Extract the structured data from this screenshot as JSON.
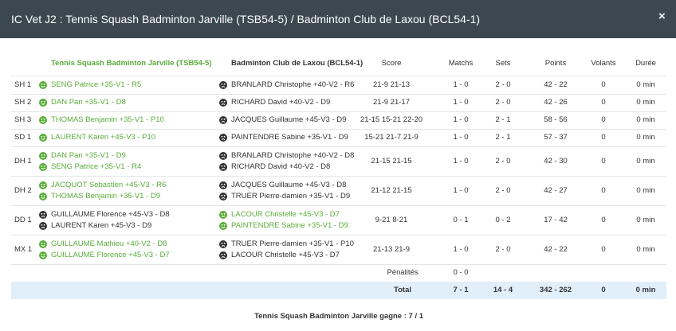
{
  "header": {
    "title": "IC Vet J2 : Tennis Squash Badminton Jarville (TSB54-5) / Badminton Club de Laxou (BCL54-1)",
    "close": "×"
  },
  "table": {
    "columns": [
      "Tennis Squash Badminton Jarville (TSB54-5)",
      "Badminton Club de Laxou (BCL54-1)",
      "Score",
      "Matchs",
      "Sets",
      "Points",
      "Volants",
      "Durée"
    ],
    "rows": [
      {
        "match": "SH 1",
        "winner": "home",
        "home": [
          "SENG Patrice +35-V1 - R5"
        ],
        "away": [
          "BRANLARD Christophe +40-V2 - R6"
        ],
        "score": "21-9 21-13",
        "matchs": "1 - 0",
        "sets": "2 - 0",
        "points": "42 - 22",
        "volants": "0",
        "duree": "0 min"
      },
      {
        "match": "SH 2",
        "winner": "home",
        "home": [
          "DAN Pan +35-V1 - D8"
        ],
        "away": [
          "RICHARD David +40-V2 - D9"
        ],
        "score": "21-9 21-17",
        "matchs": "1 - 0",
        "sets": "2 - 0",
        "points": "42 - 26",
        "volants": "0",
        "duree": "0 min"
      },
      {
        "match": "SH 3",
        "winner": "home",
        "home": [
          "THOMAS Benjamin +35-V1 - P10"
        ],
        "away": [
          "JACQUES Guillaume +45-V3 - D9"
        ],
        "score": "21-15 15-21 22-20",
        "matchs": "1 - 0",
        "sets": "2 - 1",
        "points": "58 - 56",
        "volants": "0",
        "duree": "0 min"
      },
      {
        "match": "SD 1",
        "winner": "home",
        "home": [
          "LAURENT Karen +45-V3 - P10"
        ],
        "away": [
          "PAINTENDRE Sabine +35-V1 - D9"
        ],
        "score": "15-21 21-7 21-9",
        "matchs": "1 - 0",
        "sets": "2 - 1",
        "points": "57 - 37",
        "volants": "0",
        "duree": "0 min"
      },
      {
        "match": "DH 1",
        "winner": "home",
        "home": [
          "DAN Pan +35-V1 - D9",
          "SENG Patrice +35-V1 - R4"
        ],
        "away": [
          "BRANLARD Christophe +40-V2 - D8",
          "RICHARD David +40-V2 - D8"
        ],
        "score": "21-15 21-15",
        "matchs": "1 - 0",
        "sets": "2 - 0",
        "points": "42 - 30",
        "volants": "0",
        "duree": "0 min"
      },
      {
        "match": "DH 2",
        "winner": "home",
        "home": [
          "JACQUOT Sebastien +45-V3 - R6",
          "THOMAS Benjamin +35-V1 - D9"
        ],
        "away": [
          "JACQUES Guillaume +45-V3 - D8",
          "TRUER Pierre-damien +35-V1 - D9"
        ],
        "score": "21-12 21-15",
        "matchs": "1 - 0",
        "sets": "2 - 0",
        "points": "42 - 27",
        "volants": "0",
        "duree": "0 min"
      },
      {
        "match": "DD 1",
        "winner": "away",
        "home": [
          "GUILLAUME Florence +45-V3 - D8",
          "LAURENT Karen +45-V3 - D9"
        ],
        "away": [
          "LACOUR Christelle +45-V3 - D7",
          "PAINTENDRE Sabine +35-V1 - D9"
        ],
        "score": "9-21 8-21",
        "matchs": "0 - 1",
        "sets": "0 - 2",
        "points": "17 - 42",
        "volants": "0",
        "duree": "0 min"
      },
      {
        "match": "MX 1",
        "winner": "home",
        "home": [
          "GUILLAUME Mathieu +40-V2 - D8",
          "GUILLAUME Florence +45-V3 - D7"
        ],
        "away": [
          "TRUER Pierre-damien +35-V1 - P10",
          "LACOUR Christelle +45-V3 - D7"
        ],
        "score": "21-13 21-9",
        "matchs": "1 - 0",
        "sets": "2 - 0",
        "points": "42 - 22",
        "volants": "0",
        "duree": "0 min"
      }
    ],
    "penalties": {
      "label": "Pénalités",
      "value": "0 - 0"
    },
    "total": {
      "label": "Total",
      "matchs": "7 - 1",
      "sets": "14 - 4",
      "points": "342 - 262",
      "volants": "0",
      "duree": "0 min"
    }
  },
  "footer": "Tennis Squash Badminton Jarville gagne : 7 / 1"
}
